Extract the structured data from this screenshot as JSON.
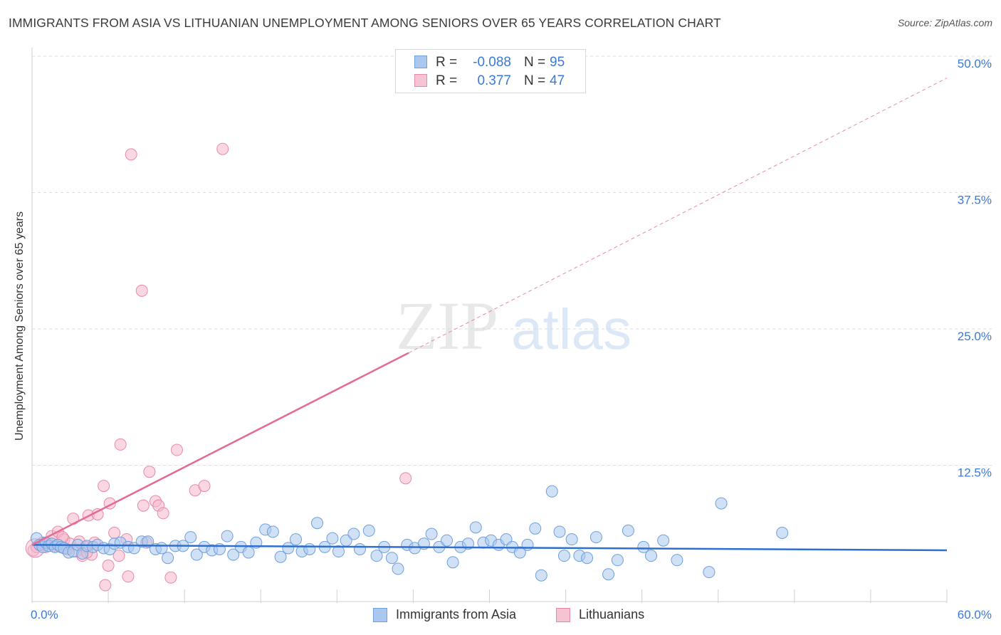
{
  "header": {
    "title": "IMMIGRANTS FROM ASIA VS LITHUANIAN UNEMPLOYMENT AMONG SENIORS OVER 65 YEARS CORRELATION CHART",
    "source": "Source: ZipAtlas.com"
  },
  "watermark": {
    "part1": "ZIP",
    "part2": "atlas"
  },
  "stats": {
    "asia": {
      "r_label": "R =",
      "r_value": "-0.088",
      "n_label": "N =",
      "n_value": "95"
    },
    "lith": {
      "r_label": "R =",
      "r_value": "0.377",
      "n_label": "N =",
      "n_value": "47"
    }
  },
  "legend": {
    "asia_label": "Immigrants from Asia",
    "lith_label": "Lithuanians"
  },
  "colors": {
    "asia_fill": "#aac8ef",
    "asia_stroke": "#6f9fdc",
    "asia_line": "#2f6fcf",
    "lith_fill": "#f6b7cb",
    "lith_stroke": "#e68aa8",
    "lith_line": "#e46b93",
    "tick_label": "#3b78d8",
    "grid": "#dddddd"
  },
  "chart_data": {
    "type": "scatter",
    "title": "IMMIGRANTS FROM ASIA VS LITHUANIAN UNEMPLOYMENT AMONG SENIORS OVER 65 YEARS CORRELATION CHART",
    "xlabel": "",
    "ylabel": "Unemployment Among Seniors over 65 years",
    "xlim": [
      0,
      60
    ],
    "ylim": [
      0,
      50
    ],
    "x_tick_labels": [
      "0.0%",
      "60.0%"
    ],
    "y_ticks": [
      12.5,
      25.0,
      37.5,
      50.0
    ],
    "y_tick_labels": [
      "12.5%",
      "25.0%",
      "37.5%",
      "50.0%"
    ],
    "grid": true,
    "series": [
      {
        "name": "Immigrants from Asia",
        "r": -0.088,
        "n": 95,
        "trend": {
          "x0": 0,
          "y0": 5.2,
          "x1": 60,
          "y1": 4.7
        },
        "points": [
          [
            0.3,
            5.8
          ],
          [
            0.5,
            5.2
          ],
          [
            0.7,
            5.0
          ],
          [
            0.9,
            5.4
          ],
          [
            1.1,
            5.1
          ],
          [
            1.3,
            5.3
          ],
          [
            1.5,
            5.0
          ],
          [
            1.7,
            5.2
          ],
          [
            1.9,
            5.0
          ],
          [
            2.1,
            4.9
          ],
          [
            2.4,
            4.5
          ],
          [
            2.7,
            4.6
          ],
          [
            3.0,
            5.2
          ],
          [
            3.3,
            4.4
          ],
          [
            3.6,
            5.1
          ],
          [
            4.0,
            5.0
          ],
          [
            4.3,
            5.2
          ],
          [
            4.7,
            4.9
          ],
          [
            5.1,
            4.8
          ],
          [
            5.4,
            5.3
          ],
          [
            5.8,
            5.4
          ],
          [
            6.3,
            5.0
          ],
          [
            6.7,
            4.9
          ],
          [
            7.2,
            5.5
          ],
          [
            7.6,
            5.5
          ],
          [
            8.1,
            4.8
          ],
          [
            8.5,
            4.9
          ],
          [
            8.9,
            4.0
          ],
          [
            9.4,
            5.1
          ],
          [
            9.9,
            5.1
          ],
          [
            10.4,
            5.9
          ],
          [
            10.8,
            4.3
          ],
          [
            11.3,
            5.0
          ],
          [
            11.8,
            4.7
          ],
          [
            12.3,
            4.8
          ],
          [
            12.8,
            6.0
          ],
          [
            13.2,
            4.3
          ],
          [
            13.7,
            5.0
          ],
          [
            14.2,
            4.5
          ],
          [
            14.7,
            5.4
          ],
          [
            15.3,
            6.6
          ],
          [
            15.8,
            6.4
          ],
          [
            16.3,
            4.1
          ],
          [
            16.8,
            4.9
          ],
          [
            17.3,
            5.7
          ],
          [
            17.7,
            4.6
          ],
          [
            18.2,
            4.8
          ],
          [
            18.7,
            7.2
          ],
          [
            19.2,
            5.0
          ],
          [
            19.7,
            5.8
          ],
          [
            20.1,
            4.6
          ],
          [
            20.6,
            5.6
          ],
          [
            21.1,
            6.2
          ],
          [
            21.5,
            4.8
          ],
          [
            22.1,
            6.5
          ],
          [
            22.6,
            4.2
          ],
          [
            23.1,
            5.0
          ],
          [
            23.6,
            4.0
          ],
          [
            24.0,
            3.0
          ],
          [
            24.6,
            5.2
          ],
          [
            25.1,
            4.9
          ],
          [
            25.7,
            5.3
          ],
          [
            26.2,
            6.2
          ],
          [
            26.7,
            5.0
          ],
          [
            27.2,
            5.6
          ],
          [
            27.6,
            3.6
          ],
          [
            28.1,
            5.0
          ],
          [
            28.6,
            5.3
          ],
          [
            29.1,
            6.8
          ],
          [
            29.6,
            5.4
          ],
          [
            30.1,
            5.6
          ],
          [
            30.6,
            5.2
          ],
          [
            31.1,
            5.7
          ],
          [
            31.5,
            5.0
          ],
          [
            32.0,
            4.5
          ],
          [
            32.5,
            5.2
          ],
          [
            33.0,
            6.7
          ],
          [
            33.4,
            2.4
          ],
          [
            34.1,
            10.1
          ],
          [
            34.6,
            6.4
          ],
          [
            34.9,
            4.2
          ],
          [
            35.4,
            5.7
          ],
          [
            35.9,
            4.2
          ],
          [
            36.4,
            4.0
          ],
          [
            37.0,
            5.9
          ],
          [
            37.8,
            2.5
          ],
          [
            38.4,
            3.8
          ],
          [
            39.1,
            6.5
          ],
          [
            40.1,
            5.0
          ],
          [
            40.6,
            4.2
          ],
          [
            41.4,
            5.6
          ],
          [
            42.3,
            3.8
          ],
          [
            44.4,
            2.7
          ],
          [
            45.2,
            9.0
          ],
          [
            49.2,
            6.3
          ]
        ]
      },
      {
        "name": "Lithuanians",
        "r": 0.377,
        "n": 47,
        "trend": {
          "x0": 0,
          "y0": 5.2,
          "x1": 24.7,
          "y1": 22.8
        },
        "trend_dashed": {
          "x0": 24.7,
          "y0": 22.8,
          "x1": 60,
          "y1": 48.0
        },
        "points": [
          [
            0.1,
            4.7
          ],
          [
            0.3,
            5.0
          ],
          [
            0.5,
            5.2
          ],
          [
            0.7,
            5.4
          ],
          [
            0.9,
            5.0
          ],
          [
            1.1,
            5.3
          ],
          [
            1.3,
            6.0
          ],
          [
            1.5,
            5.1
          ],
          [
            1.7,
            6.4
          ],
          [
            1.9,
            5.0
          ],
          [
            2.1,
            5.7
          ],
          [
            2.3,
            4.8
          ],
          [
            2.5,
            5.3
          ],
          [
            2.7,
            7.6
          ],
          [
            2.9,
            4.6
          ],
          [
            3.1,
            5.5
          ],
          [
            3.3,
            4.2
          ],
          [
            3.5,
            5.0
          ],
          [
            3.7,
            7.9
          ],
          [
            3.9,
            4.3
          ],
          [
            4.1,
            5.4
          ],
          [
            4.3,
            8.0
          ],
          [
            4.7,
            10.6
          ],
          [
            5.0,
            3.3
          ],
          [
            5.1,
            9.0
          ],
          [
            5.4,
            6.3
          ],
          [
            5.7,
            4.2
          ],
          [
            5.8,
            14.4
          ],
          [
            6.2,
            5.7
          ],
          [
            6.3,
            2.3
          ],
          [
            6.5,
            41.0
          ],
          [
            7.2,
            28.5
          ],
          [
            7.3,
            8.8
          ],
          [
            7.5,
            5.4
          ],
          [
            7.7,
            11.9
          ],
          [
            8.1,
            9.2
          ],
          [
            8.3,
            8.8
          ],
          [
            8.6,
            8.1
          ],
          [
            9.1,
            2.2
          ],
          [
            9.5,
            13.9
          ],
          [
            10.7,
            10.2
          ],
          [
            11.3,
            10.6
          ],
          [
            12.5,
            41.5
          ],
          [
            24.5,
            11.3
          ],
          [
            4.8,
            1.5
          ],
          [
            3.6,
            4.5
          ],
          [
            2.0,
            5.9
          ]
        ]
      }
    ]
  }
}
